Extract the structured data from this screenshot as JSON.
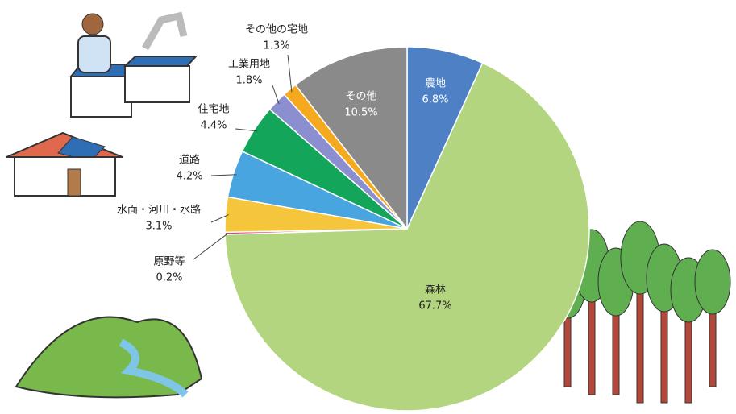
{
  "chart_data": {
    "type": "pie",
    "categories": [
      "農地",
      "森林",
      "原野等",
      "水面・河川・水路",
      "道路",
      "住宅地",
      "工業用地",
      "その他の宅地",
      "その他"
    ],
    "values": [
      6.8,
      67.7,
      0.2,
      3.1,
      4.2,
      4.4,
      1.8,
      1.3,
      10.5
    ],
    "value_labels": [
      "6.8%",
      "67.7%",
      "0.2%",
      "3.1%",
      "4.2%",
      "4.4%",
      "1.8%",
      "1.3%",
      "10.5%"
    ],
    "colors": [
      "#4d80c4",
      "#b3d57f",
      "#e2427f",
      "#f5c63b",
      "#48a5e0",
      "#13a55a",
      "#8b8fd0",
      "#f5a91e",
      "#8a8a8a"
    ]
  }
}
